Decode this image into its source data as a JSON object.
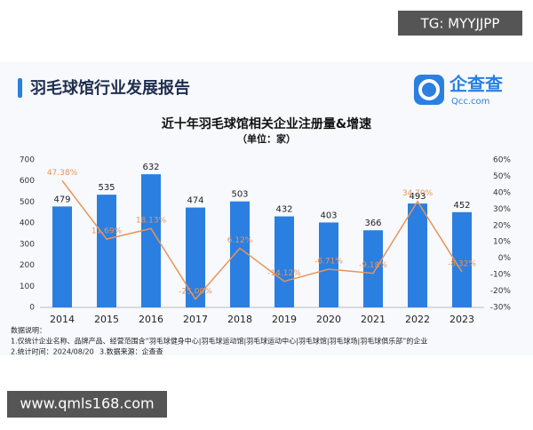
{
  "watermarks": {
    "top": "TG: MYYJJPP",
    "bottom": "www.qmls168.com"
  },
  "header": {
    "title": "羽毛球馆行业发展报告",
    "logo_text": "企查查",
    "logo_subtext": "Qcc.com"
  },
  "chart_data": {
    "type": "bar",
    "title": "近十年羽毛球馆相关企业注册量&增速",
    "subtitle": "（单位：家）",
    "categories": [
      "2014",
      "2015",
      "2016",
      "2017",
      "2018",
      "2019",
      "2020",
      "2021",
      "2022",
      "2023"
    ],
    "series": [
      {
        "type": "bar",
        "color": "#2b7fe0",
        "axis": "y",
        "values": [
          479,
          535,
          632,
          474,
          503,
          432,
          403,
          366,
          493,
          452
        ]
      },
      {
        "type": "line",
        "color": "#e8945a",
        "axis": "y2",
        "values": [
          47.38,
          11.69,
          18.13,
          -25.0,
          6.12,
          -14.12,
          -6.71,
          -9.18,
          34.7,
          -8.32
        ],
        "value_labels": [
          "47.38%",
          "11.69%",
          "18.13%",
          "-25.00%",
          "6.12%",
          "-14.12%",
          "-6.71%",
          "-9.18%",
          "34.70%",
          "-8.32%"
        ]
      }
    ],
    "ylim": [
      0,
      700
    ],
    "yticks": [
      0,
      100,
      200,
      300,
      400,
      500,
      600,
      700
    ],
    "y2lim": [
      -30,
      60
    ],
    "y2ticks": [
      {
        "value": -30,
        "label": "-30%"
      },
      {
        "value": -20,
        "label": "-20%"
      },
      {
        "value": -10,
        "label": "-10%"
      },
      {
        "value": 0,
        "label": "0%"
      },
      {
        "value": 10,
        "label": "10%"
      },
      {
        "value": 20,
        "label": "20%"
      },
      {
        "value": 30,
        "label": "30%"
      },
      {
        "value": 40,
        "label": "40%"
      },
      {
        "value": 50,
        "label": "50%"
      },
      {
        "value": 60,
        "label": "60%"
      }
    ]
  },
  "notes": {
    "title": "数据说明：",
    "items": [
      "1.仅统计企业名称、品牌产品、经营范围含“羽毛球健身中心|羽毛球运动馆|羽毛球运动中心|羽毛球馆|羽毛球场|羽毛球俱乐部”的企业",
      "2.统计时间：2024/08/20",
      "3.数据来源：企查查"
    ]
  }
}
